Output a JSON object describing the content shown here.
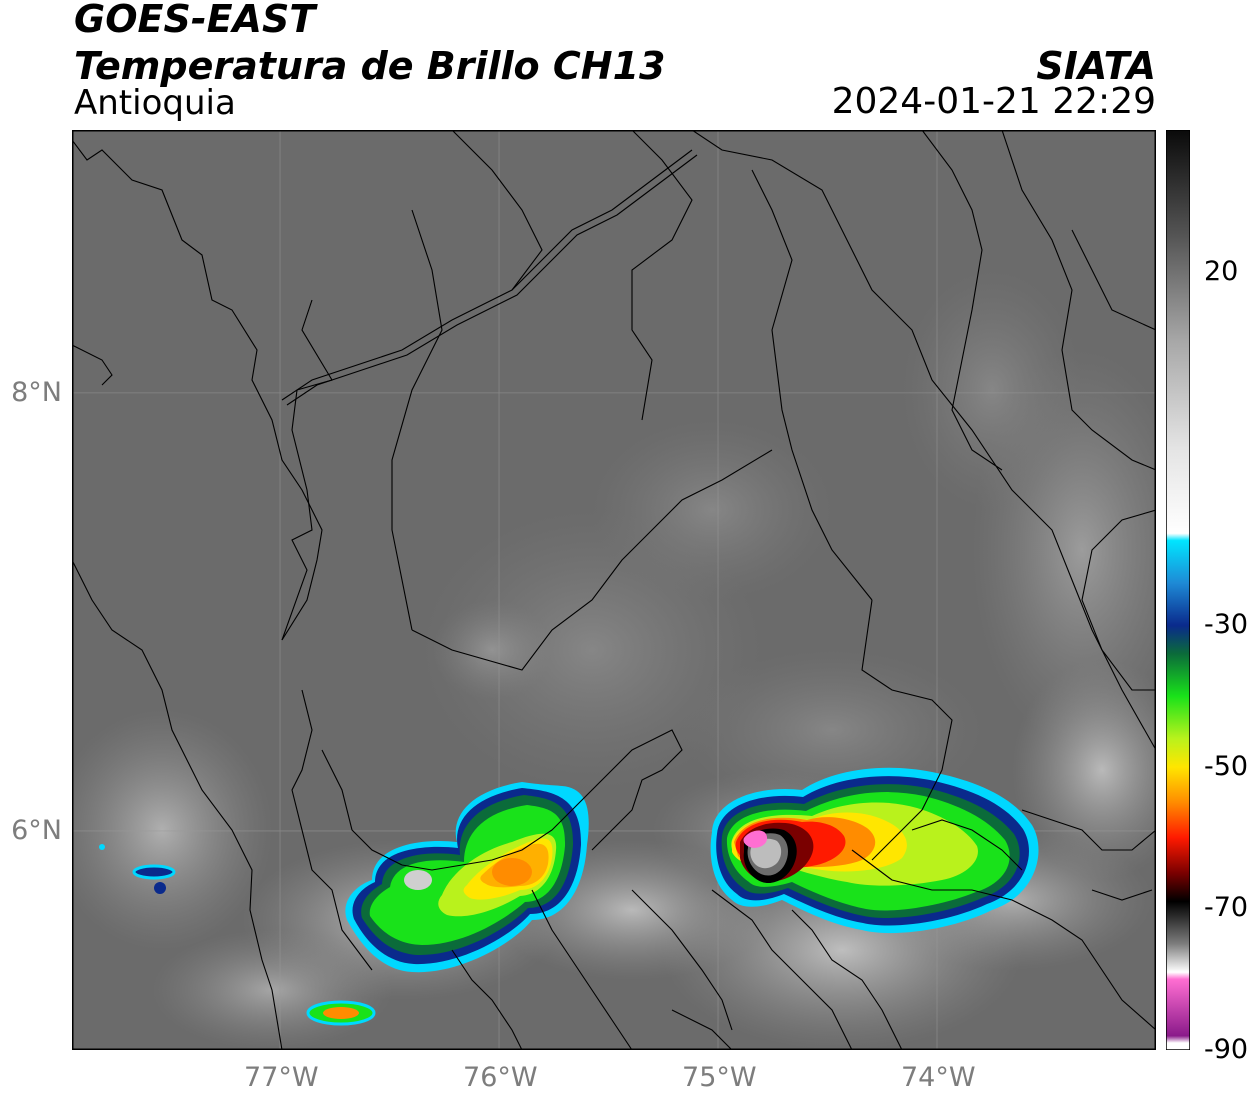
{
  "header": {
    "satellite": "GOES-EAST",
    "product": "Temperatura de Brillo CH13",
    "region": "Antioquia",
    "brand": "SIATA",
    "timestamp": "2024-01-21 22:29"
  },
  "map": {
    "lat_range": [
      5.0,
      9.2
    ],
    "lon_range": [
      -77.95,
      -73.0
    ],
    "lat_ticks": [
      {
        "value": 8,
        "label": "8°N"
      },
      {
        "value": 6,
        "label": "6°N"
      }
    ],
    "lon_ticks": [
      {
        "value": -77,
        "label": "77°W"
      },
      {
        "value": -76,
        "label": "76°W"
      },
      {
        "value": -75,
        "label": "75°W"
      },
      {
        "value": -74,
        "label": "74°W"
      }
    ],
    "gridlines": true,
    "background_color": "#6a6a6a"
  },
  "colorbar": {
    "range": [
      -90,
      40
    ],
    "ticks": [
      {
        "value": 20,
        "label": "20"
      },
      {
        "value": -30,
        "label": "-30"
      },
      {
        "value": -50,
        "label": "-50"
      },
      {
        "value": -70,
        "label": "-70"
      },
      {
        "value": -90,
        "label": "-90"
      }
    ],
    "stops": [
      {
        "value": 40,
        "color": "#0a0a0a"
      },
      {
        "value": 25,
        "color": "#555555"
      },
      {
        "value": 10,
        "color": "#a8a8a8"
      },
      {
        "value": -5,
        "color": "#e4e4e4"
      },
      {
        "value": -17,
        "color": "#ffffff"
      },
      {
        "value": -18,
        "color": "#00e5ff"
      },
      {
        "value": -24,
        "color": "#1e8ad6"
      },
      {
        "value": -30,
        "color": "#0a2a8c"
      },
      {
        "value": -34,
        "color": "#0b6b3a"
      },
      {
        "value": -40,
        "color": "#19e21a"
      },
      {
        "value": -46,
        "color": "#b9f21c"
      },
      {
        "value": -50,
        "color": "#ffe600"
      },
      {
        "value": -55,
        "color": "#ff8c00"
      },
      {
        "value": -60,
        "color": "#ff1a00"
      },
      {
        "value": -65,
        "color": "#7a0000"
      },
      {
        "value": -69,
        "color": "#000000"
      },
      {
        "value": -75,
        "color": "#7d7d7d"
      },
      {
        "value": -79,
        "color": "#ffffff"
      },
      {
        "value": -80,
        "color": "#ff6ed2"
      },
      {
        "value": -88,
        "color": "#8a1a8a"
      },
      {
        "value": -89,
        "color": "#ffffff"
      }
    ]
  }
}
